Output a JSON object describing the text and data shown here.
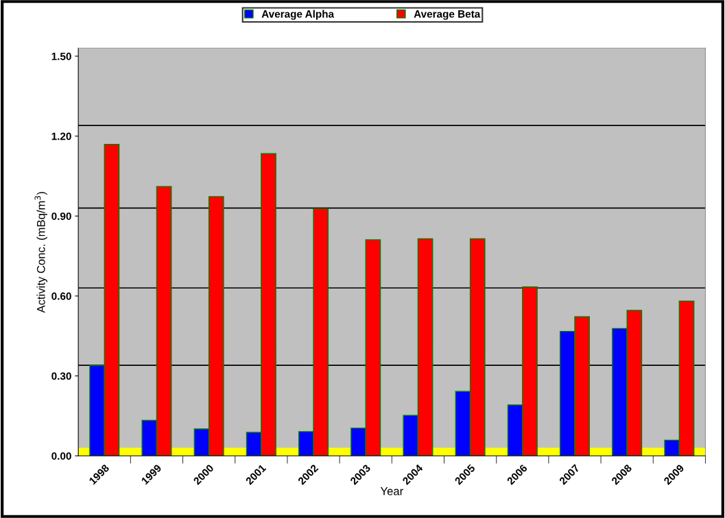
{
  "chart_data": {
    "type": "bar",
    "xlabel": "Year",
    "ylabel": "Activity Conc. (mBq/m$^{3}$)",
    "categories": [
      "1998",
      "1999",
      "2000",
      "2001",
      "2002",
      "2003",
      "2004",
      "2005",
      "2006",
      "2007",
      "2008",
      "2009"
    ],
    "series": [
      {
        "name": "Average Alpha",
        "color": "#0000ff",
        "values": [
          0.339,
          0.133,
          0.101,
          0.088,
          0.091,
          0.104,
          0.152,
          0.242,
          0.191,
          0.467,
          0.478,
          0.059
        ]
      },
      {
        "name": "Average Beta",
        "color": "#ff0000",
        "values": [
          1.169,
          1.011,
          0.973,
          1.134,
          0.928,
          0.811,
          0.815,
          0.815,
          0.634,
          0.522,
          0.546,
          0.581
        ]
      }
    ],
    "ylim": [
      0,
      1.53
    ],
    "yticks": [
      {
        "value": 0,
        "label": "0.00"
      },
      {
        "value": 0.3,
        "label": "0.30"
      },
      {
        "value": 0.6,
        "label": "0.60"
      },
      {
        "value": 0.9,
        "label": "0.90"
      },
      {
        "value": 1.2,
        "label": "1.20"
      },
      {
        "value": 1.5,
        "label": "1.50"
      }
    ],
    "ref_lines": [
      {
        "axis": "y",
        "value": 0.34,
        "color": "#000000"
      },
      {
        "axis": "y",
        "value": 0.63,
        "color": "#000000"
      },
      {
        "axis": "y",
        "value": 0.93,
        "color": "#000000"
      },
      {
        "axis": "y",
        "value": 1.24,
        "color": "#000000"
      }
    ],
    "bands": [
      {
        "axis": "y",
        "from": 0,
        "to": 0.03,
        "color": "#ffff00"
      }
    ],
    "legend": "top",
    "grid": false
  }
}
